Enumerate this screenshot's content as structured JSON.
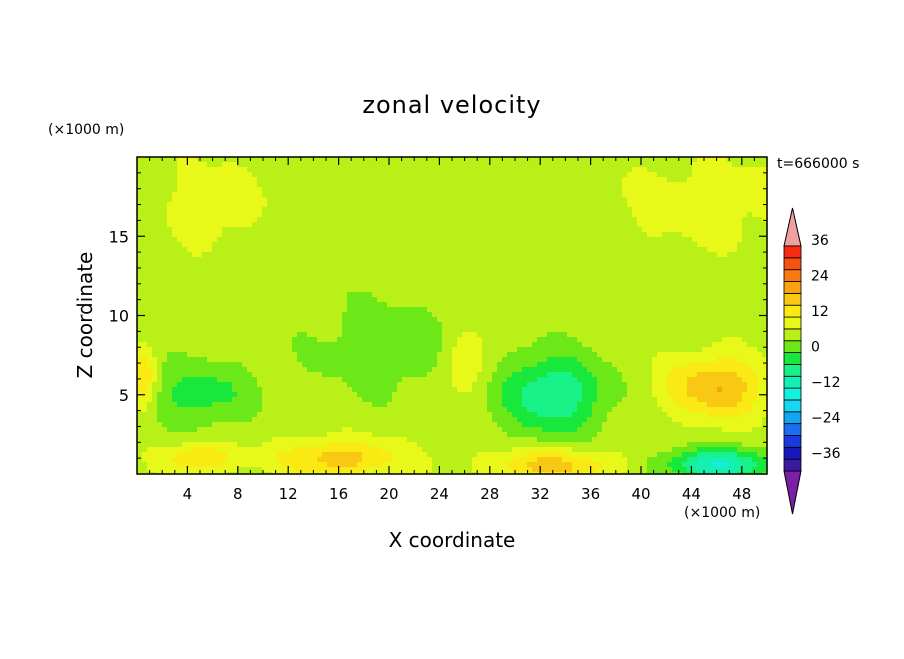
{
  "chart_data": {
    "type": "heatmap",
    "title": "zonal velocity",
    "xlabel": "X coordinate",
    "ylabel": "Z coordinate",
    "x_unit": "(×1000 m)",
    "y_unit": "(×1000 m)",
    "time_label": "t=666000 s",
    "xlim": [
      0,
      50
    ],
    "ylim": [
      0,
      20
    ],
    "x_ticks": [
      "4",
      "8",
      "12",
      "16",
      "20",
      "24",
      "28",
      "32",
      "36",
      "40",
      "44",
      "48"
    ],
    "y_ticks": [
      "5",
      "10",
      "15"
    ],
    "colorbar": {
      "range": [
        -42,
        42
      ],
      "step": 4,
      "tick_labels": [
        "36",
        "24",
        "12",
        "0",
        "−12",
        "−24",
        "−36"
      ],
      "colors": [
        "#7a1fa8",
        "#3a1a9c",
        "#1818b8",
        "#1a3ae0",
        "#1a6ef0",
        "#12a6f0",
        "#16d8f2",
        "#14f0e0",
        "#14f0b4",
        "#18f088",
        "#18e83c",
        "#6ce818",
        "#b8f018",
        "#e8f818",
        "#f8ea12",
        "#f8c812",
        "#f8a412",
        "#f87a12",
        "#f85212",
        "#f82a12",
        "#f0a0a0"
      ]
    },
    "field": {
      "base_value": 4,
      "features": [
        {
          "x": 5,
          "z": 5,
          "amplitude": -8,
          "sx": 4,
          "sz": 2
        },
        {
          "x": 16,
          "z": 1,
          "amplitude": 12,
          "sx": 5,
          "sz": 1.2
        },
        {
          "x": 5,
          "z": 1,
          "amplitude": 10,
          "sx": 3,
          "sz": 1
        },
        {
          "x": 33,
          "z": 5,
          "amplitude": -14,
          "sx": 4,
          "sz": 2.5
        },
        {
          "x": 33,
          "z": 0.6,
          "amplitude": 12,
          "sx": 5,
          "sz": 1
        },
        {
          "x": 46,
          "z": 5.5,
          "amplitude": 14,
          "sx": 4,
          "sz": 2
        },
        {
          "x": 46,
          "z": 0.6,
          "amplitude": -18,
          "sx": 4,
          "sz": 1
        },
        {
          "x": 20,
          "z": 8,
          "amplitude": -5,
          "sx": 6,
          "sz": 3
        },
        {
          "x": 45,
          "z": 17,
          "amplitude": 4,
          "sx": 8,
          "sz": 3
        },
        {
          "x": 6,
          "z": 17,
          "amplitude": 4,
          "sx": 4,
          "sz": 3
        },
        {
          "x": 26,
          "z": 7,
          "amplitude": 7,
          "sx": 2,
          "sz": 2
        },
        {
          "x": 0.5,
          "z": 6,
          "amplitude": 10,
          "sx": 1,
          "sz": 2
        }
      ]
    }
  }
}
